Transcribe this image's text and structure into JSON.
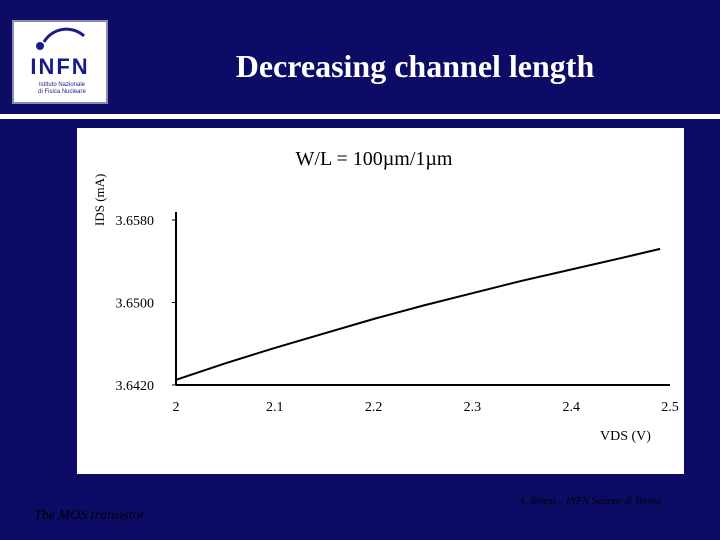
{
  "slide": {
    "title": "Decreasing channel length",
    "footer_left": "The MOS transistor",
    "footer_right": "A. Rivetti – INFN Sezione di Torino",
    "logo_text": "INFN",
    "logo_subtitle_1": "Istituto Nazionale",
    "logo_subtitle_2": "di Fisica Nucleare",
    "background_color": "#0c0c66"
  },
  "chart_data": {
    "type": "line",
    "title": "W/L = 100µm/1µm",
    "xlabel": "VDS (V)",
    "ylabel": "IDS (mA)",
    "xlim": [
      2,
      2.5
    ],
    "ylim": [
      3.642,
      3.658
    ],
    "x_ticks": [
      "2",
      "2.1",
      "2.2",
      "2.3",
      "2.4",
      "2.5"
    ],
    "y_ticks": [
      "3.6580",
      "3.6500",
      "3.6420"
    ],
    "x_tick_values": [
      2,
      2.1,
      2.2,
      2.3,
      2.4,
      2.5
    ],
    "y_tick_values": [
      3.658,
      3.65,
      3.642
    ],
    "series": [
      {
        "x": [
          2.0,
          2.05,
          2.1,
          2.15,
          2.2,
          2.25,
          2.3,
          2.35,
          2.4,
          2.45,
          2.49
        ],
        "y": [
          3.6425,
          3.6441,
          3.6456,
          3.647,
          3.6484,
          3.6497,
          3.6509,
          3.6521,
          3.6532,
          3.6543,
          3.6552
        ],
        "color": "#000000"
      }
    ],
    "grid": false
  }
}
